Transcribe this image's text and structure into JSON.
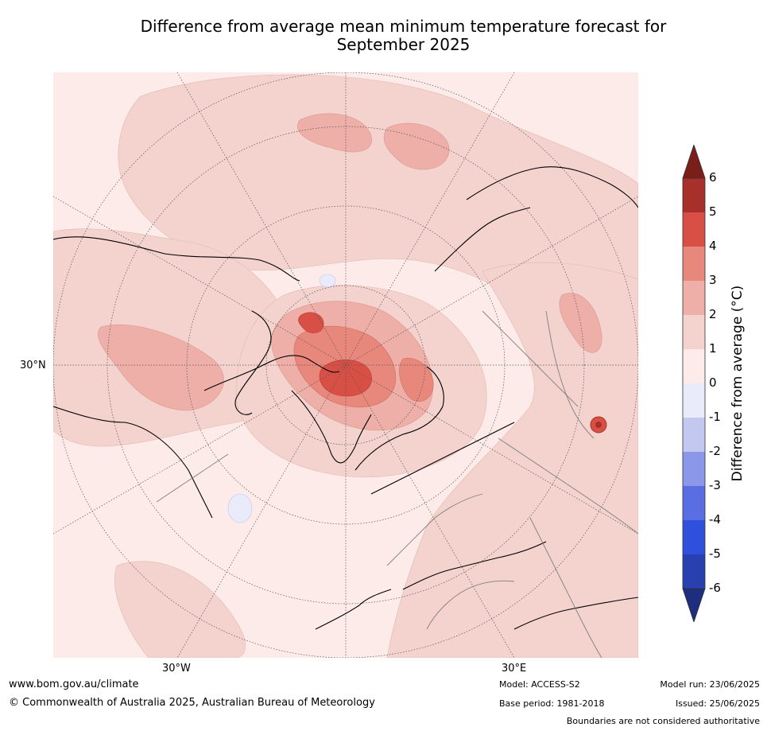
{
  "title_line1": "Difference from average mean minimum temperature forecast for",
  "title_line2": "September 2025",
  "map": {
    "lat_label": "30°N",
    "lon_labels": [
      "30°W",
      "30°E"
    ],
    "colors": {
      "land_line": "#000000",
      "border_line": "#808080",
      "grid_line": "#555555"
    }
  },
  "colorbar": {
    "label": "Difference from average (°C)",
    "ticks": [
      "6",
      "5",
      "4",
      "3",
      "2",
      "1",
      "0",
      "-1",
      "-2",
      "-3",
      "-4",
      "-5",
      "-6"
    ],
    "colors_top_to_bottom": [
      "#7b1e19",
      "#a8302a",
      "#d85045",
      "#e8877c",
      "#edafa8",
      "#f4d2cd",
      "#fcebe8",
      "#e9ebfa",
      "#c2c8f0",
      "#8b98ea",
      "#5a6ee3",
      "#2f4fdd",
      "#2840b0",
      "#1f2d7f"
    ]
  },
  "footer": {
    "url": "www.bom.gov.au/climate",
    "copyright": "© Commonwealth of Australia 2025, Australian Bureau of Meteorology",
    "model": "Model: ACCESS-S2",
    "base_period": "Base period: 1981-2018",
    "model_run": "Model run: 23/06/2025",
    "issued": "Issued: 25/06/2025",
    "disclaimer": "Boundaries are not considered authoritative"
  }
}
